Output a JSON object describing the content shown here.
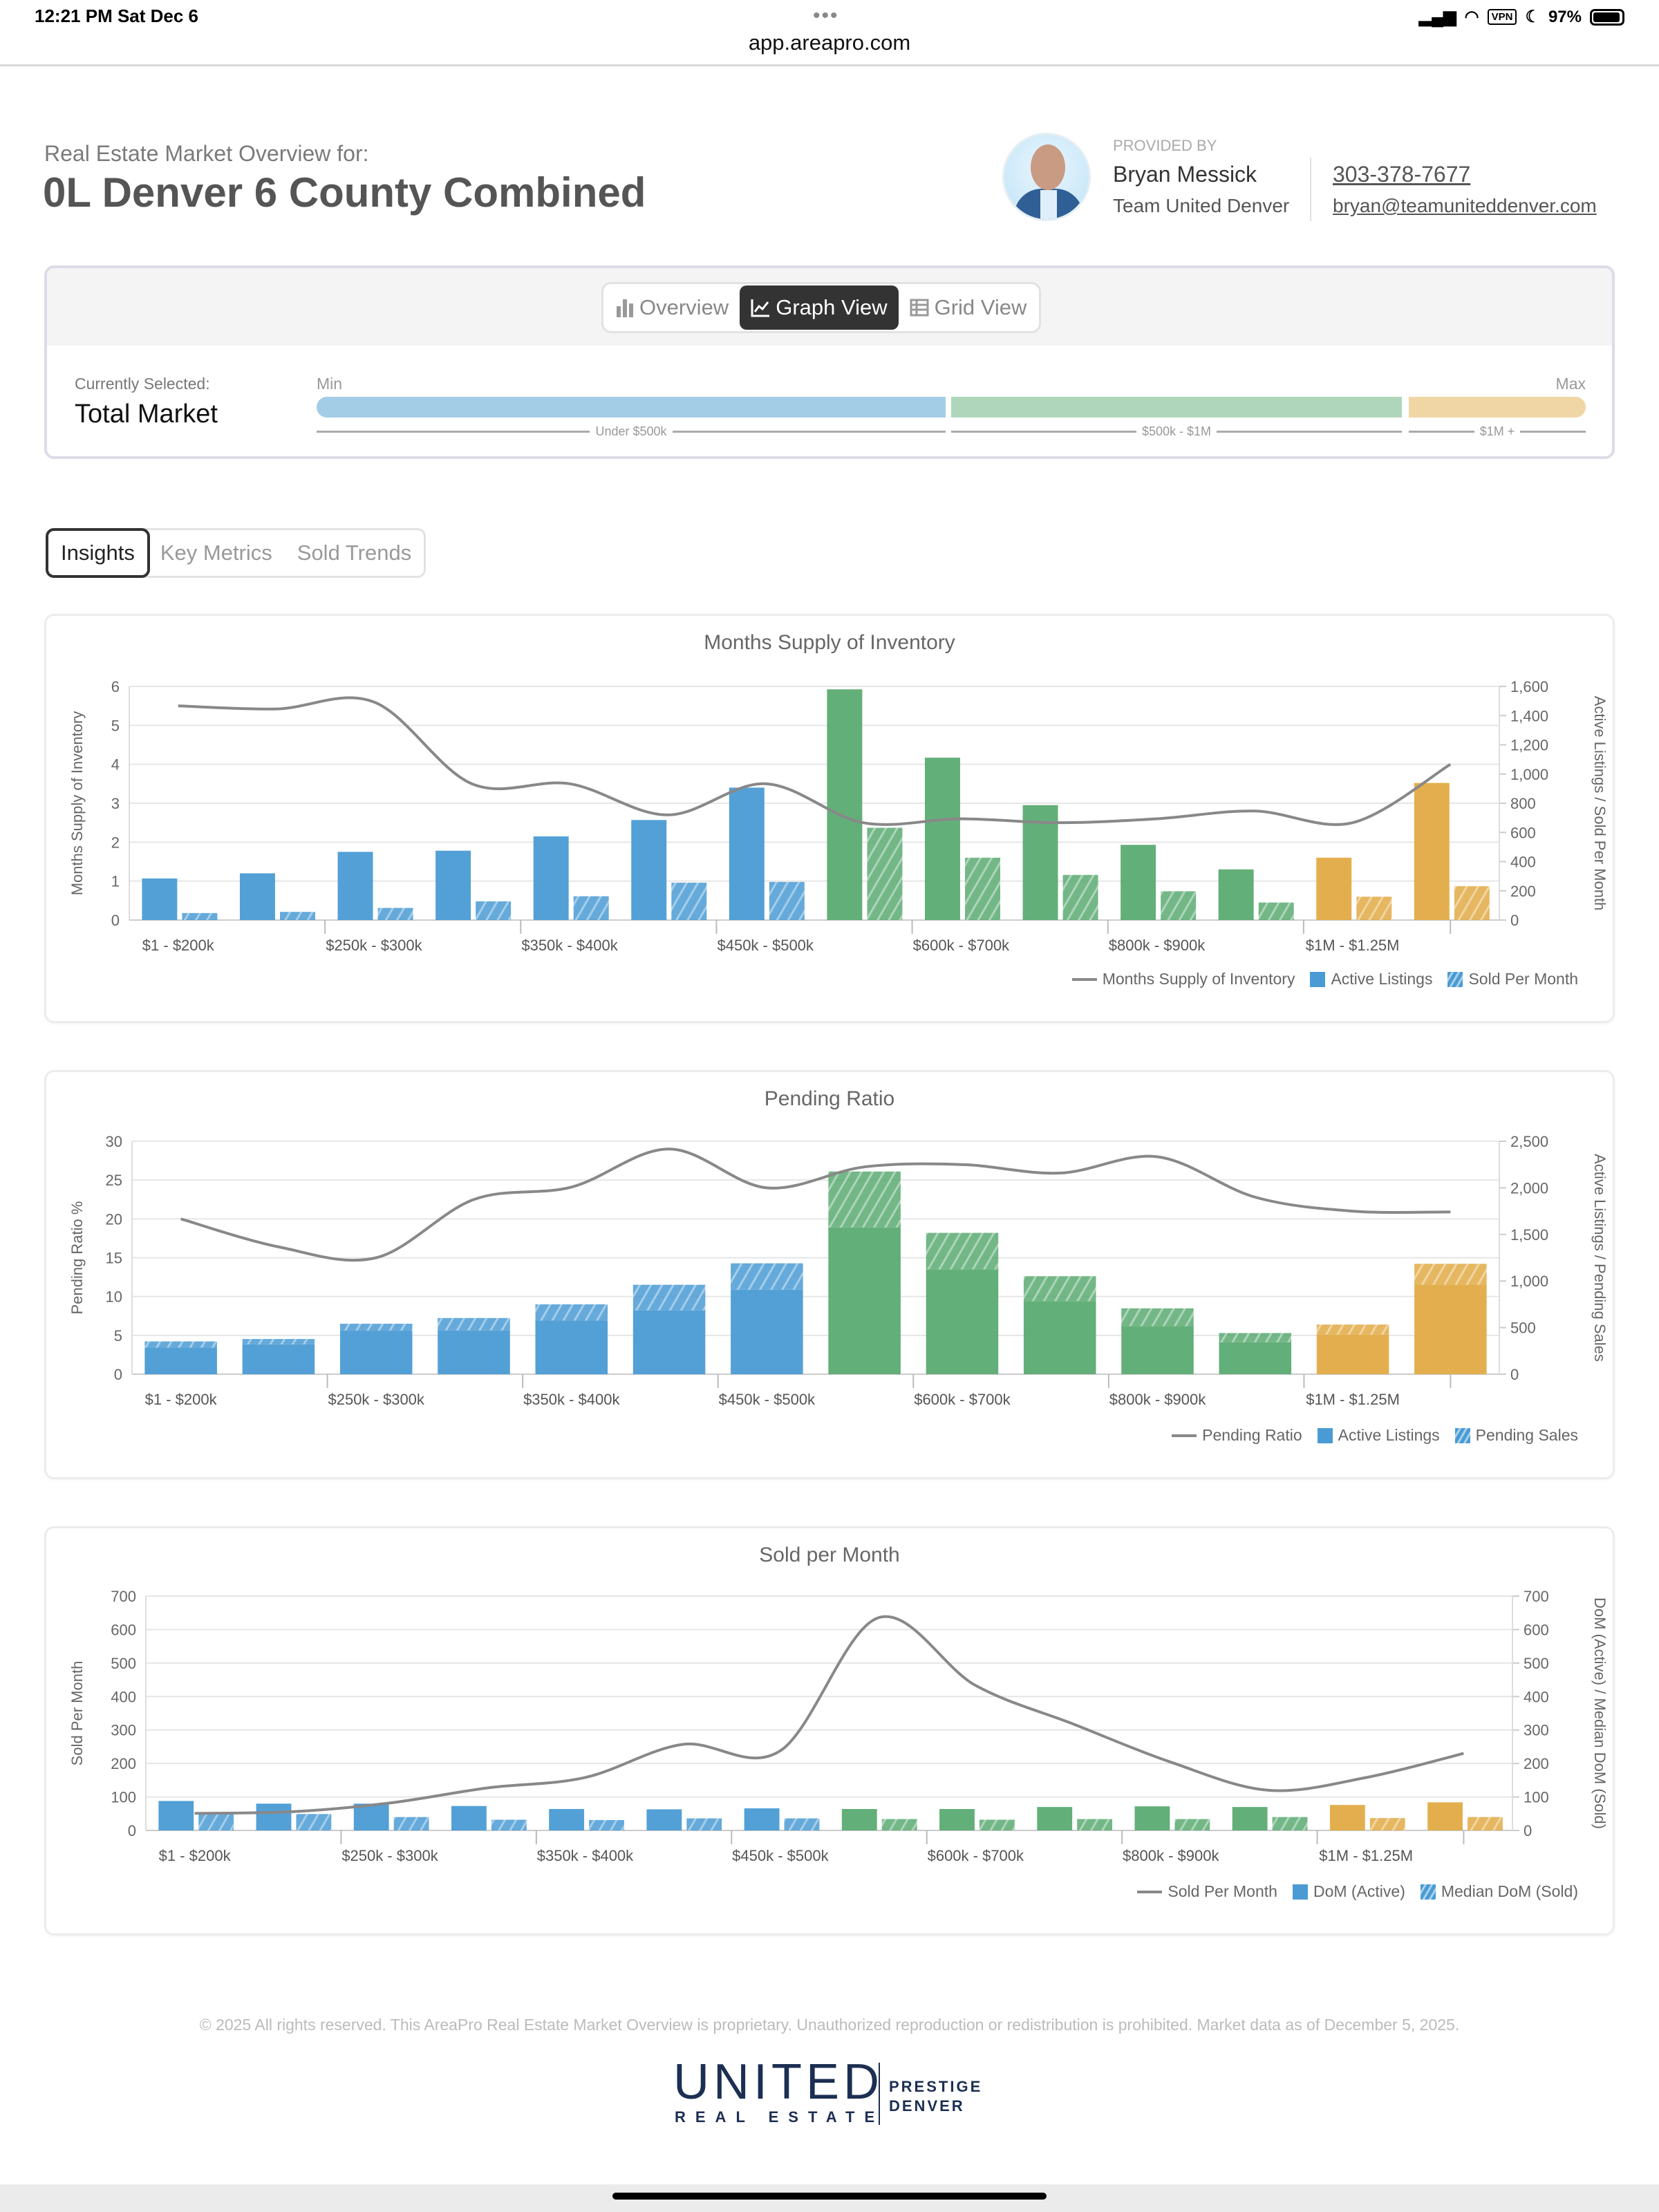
{
  "status_bar": {
    "time": "12:21 PM  Sat Dec 6",
    "battery": "97%",
    "vpn": "VPN",
    "dots": "•••"
  },
  "browser": {
    "url": "app.areapro.com"
  },
  "header": {
    "label": "Real Estate Market Overview for:",
    "title": "0L Denver 6 County Combined"
  },
  "agent": {
    "provided_by": "PROVIDED BY",
    "name": "Bryan Messick",
    "team": "Team United Denver",
    "phone": "303-378-7677",
    "email": "bryan@teamuniteddenver.com"
  },
  "view_toggle": {
    "items": [
      {
        "label": "Overview",
        "icon": "bar-chart-icon"
      },
      {
        "label": "Graph View",
        "icon": "line-chart-icon",
        "active": true
      },
      {
        "label": "Grid View",
        "icon": "table-icon"
      }
    ]
  },
  "selection": {
    "label": "Currently Selected:",
    "value": "Total Market",
    "min": "Min",
    "max": "Max",
    "ranges": [
      {
        "label": "Under $500k",
        "color": "#a3cde7"
      },
      {
        "label": "$500k - $1M",
        "color": "#afd6bb"
      },
      {
        "label": "$1M +",
        "color": "#f0d6a4"
      }
    ]
  },
  "tabs": [
    {
      "label": "Insights",
      "active": true
    },
    {
      "label": "Key Metrics"
    },
    {
      "label": "Sold Trends"
    }
  ],
  "colors": {
    "blue": "#4a9bd4",
    "green": "#5bab72",
    "gold": "#e2ab45",
    "line": "#888888"
  },
  "chart_data": [
    {
      "type": "bar+line",
      "title": "Months Supply of Inventory",
      "stacked": false,
      "categories": [
        "$1 - $200k",
        "",
        "$250k - $300k",
        "",
        "$350k - $400k",
        "",
        "$450k - $500k",
        "",
        "$600k - $700k",
        "",
        "$800k - $900k",
        "",
        "$1M - $1.25M",
        ""
      ],
      "bar_colors": [
        "#4a9bd4",
        "#4a9bd4",
        "#4a9bd4",
        "#4a9bd4",
        "#4a9bd4",
        "#4a9bd4",
        "#4a9bd4",
        "#5bab72",
        "#5bab72",
        "#5bab72",
        "#5bab72",
        "#5bab72",
        "#e2ab45",
        "#e2ab45"
      ],
      "y_left": {
        "label": "Months Supply of Inventory",
        "min": 0,
        "max": 6,
        "ticks": [
          "0",
          "1",
          "2",
          "3",
          "4",
          "5",
          "6"
        ]
      },
      "y_right": {
        "label": "Active Listings / Sold Per Month",
        "min": 0,
        "max": 1600,
        "ticks": [
          "0",
          "200",
          "400",
          "600",
          "800",
          "1,000",
          "1,200",
          "1,400",
          "1,600"
        ]
      },
      "grid": true,
      "legend": "bottom-right",
      "series": [
        {
          "name": "Months Supply of Inventory",
          "kind": "line",
          "axis": "left",
          "values": [
            5.5,
            5.42,
            5.6,
            3.5,
            3.5,
            2.7,
            3.5,
            2.5,
            2.6,
            2.5,
            2.6,
            2.8,
            2.5,
            4.0
          ]
        },
        {
          "name": "Active Listings",
          "kind": "bar",
          "axis": "right",
          "values": [
            285,
            320,
            467,
            475,
            573,
            685,
            907,
            1580,
            1112,
            787,
            515,
            347,
            427,
            939
          ]
        },
        {
          "name": "Sold Per Month",
          "kind": "bar",
          "axis": "right",
          "hatched": true,
          "values": [
            48,
            56,
            83,
            128,
            163,
            256,
            261,
            632,
            427,
            309,
            197,
            120,
            160,
            232
          ]
        }
      ]
    },
    {
      "type": "bar+line",
      "title": "Pending Ratio",
      "stacked": true,
      "categories": [
        "$1 - $200k",
        "",
        "$250k - $300k",
        "",
        "$350k - $400k",
        "",
        "$450k - $500k",
        "",
        "$600k - $700k",
        "",
        "$800k - $900k",
        "",
        "$1M - $1.25M",
        ""
      ],
      "bar_colors": [
        "#4a9bd4",
        "#4a9bd4",
        "#4a9bd4",
        "#4a9bd4",
        "#4a9bd4",
        "#4a9bd4",
        "#4a9bd4",
        "#5bab72",
        "#5bab72",
        "#5bab72",
        "#5bab72",
        "#5bab72",
        "#e2ab45",
        "#e2ab45"
      ],
      "y_left": {
        "label": "Pending Ratio %",
        "min": 0,
        "max": 30,
        "ticks": [
          "0",
          "5",
          "10",
          "15",
          "20",
          "25",
          "30"
        ]
      },
      "y_right": {
        "label": "Active Listings / Pending Sales",
        "min": 0,
        "max": 2500,
        "ticks": [
          "0",
          "500",
          "1,000",
          "1,500",
          "2,000",
          "2,500"
        ]
      },
      "grid": true,
      "legend": "bottom-right",
      "series": [
        {
          "name": "Pending Ratio",
          "kind": "line",
          "axis": "left",
          "values": [
            20,
            16.4,
            15,
            22.5,
            24.1,
            29,
            24,
            26.7,
            27,
            25.9,
            28,
            22.8,
            21,
            20.9
          ]
        },
        {
          "name": "Active Listings",
          "kind": "bar",
          "axis": "right",
          "values": [
            285,
            320,
            467,
            470,
            575,
            685,
            907,
            1575,
            1125,
            785,
            515,
            342,
            425,
            960
          ]
        },
        {
          "name": "Pending Sales",
          "kind": "bar",
          "axis": "right",
          "hatched": true,
          "values": [
            67,
            58,
            75,
            133,
            175,
            275,
            283,
            600,
            392,
            267,
            192,
            100,
            108,
            225
          ]
        }
      ]
    },
    {
      "type": "bar+line",
      "title": "Sold per Month",
      "stacked": false,
      "categories": [
        "$1 - $200k",
        "",
        "$250k - $300k",
        "",
        "$350k - $400k",
        "",
        "$450k - $500k",
        "",
        "$600k - $700k",
        "",
        "$800k - $900k",
        "",
        "$1M - $1.25M",
        ""
      ],
      "bar_colors": [
        "#4a9bd4",
        "#4a9bd4",
        "#4a9bd4",
        "#4a9bd4",
        "#4a9bd4",
        "#4a9bd4",
        "#4a9bd4",
        "#5bab72",
        "#5bab72",
        "#5bab72",
        "#5bab72",
        "#5bab72",
        "#e2ab45",
        "#e2ab45"
      ],
      "y_left": {
        "label": "Sold Per Month",
        "min": 0,
        "max": 700,
        "ticks": [
          "0",
          "100",
          "200",
          "300",
          "400",
          "500",
          "600",
          "700"
        ]
      },
      "y_right": {
        "label": "DoM (Active) / Median DoM (Sold)",
        "min": 0,
        "max": 700,
        "ticks": [
          "0",
          "100",
          "200",
          "300",
          "400",
          "500",
          "600",
          "700"
        ]
      },
      "grid": true,
      "legend": "bottom-right",
      "series": [
        {
          "name": "Sold Per Month",
          "kind": "line",
          "axis": "left",
          "values": [
            51,
            56,
            82,
            127,
            158,
            257,
            238,
            635,
            433,
            318,
            204,
            120,
            158,
            230
          ]
        },
        {
          "name": "DoM (Active)",
          "kind": "bar",
          "axis": "right",
          "values": [
            88,
            80,
            80,
            73,
            64,
            63,
            66,
            64,
            64,
            70,
            72,
            70,
            76,
            84
          ]
        },
        {
          "name": "Median DoM (Sold)",
          "kind": "bar",
          "axis": "right",
          "hatched": true,
          "values": [
            51,
            49,
            40,
            32,
            31,
            36,
            36,
            34,
            32,
            34,
            34,
            40,
            37,
            40
          ]
        }
      ]
    }
  ],
  "footer": {
    "copyright": "© 2025 All rights reserved. This AreaPro Real Estate Market Overview is proprietary. Unauthorized reproduction or redistribution is prohibited. Market data as of December 5, 2025.",
    "logo": {
      "word": "UNITED",
      "sub": "REAL ESTATE",
      "line1": "PRESTIGE",
      "line2": "DENVER",
      "color": "#1c2f52"
    }
  }
}
